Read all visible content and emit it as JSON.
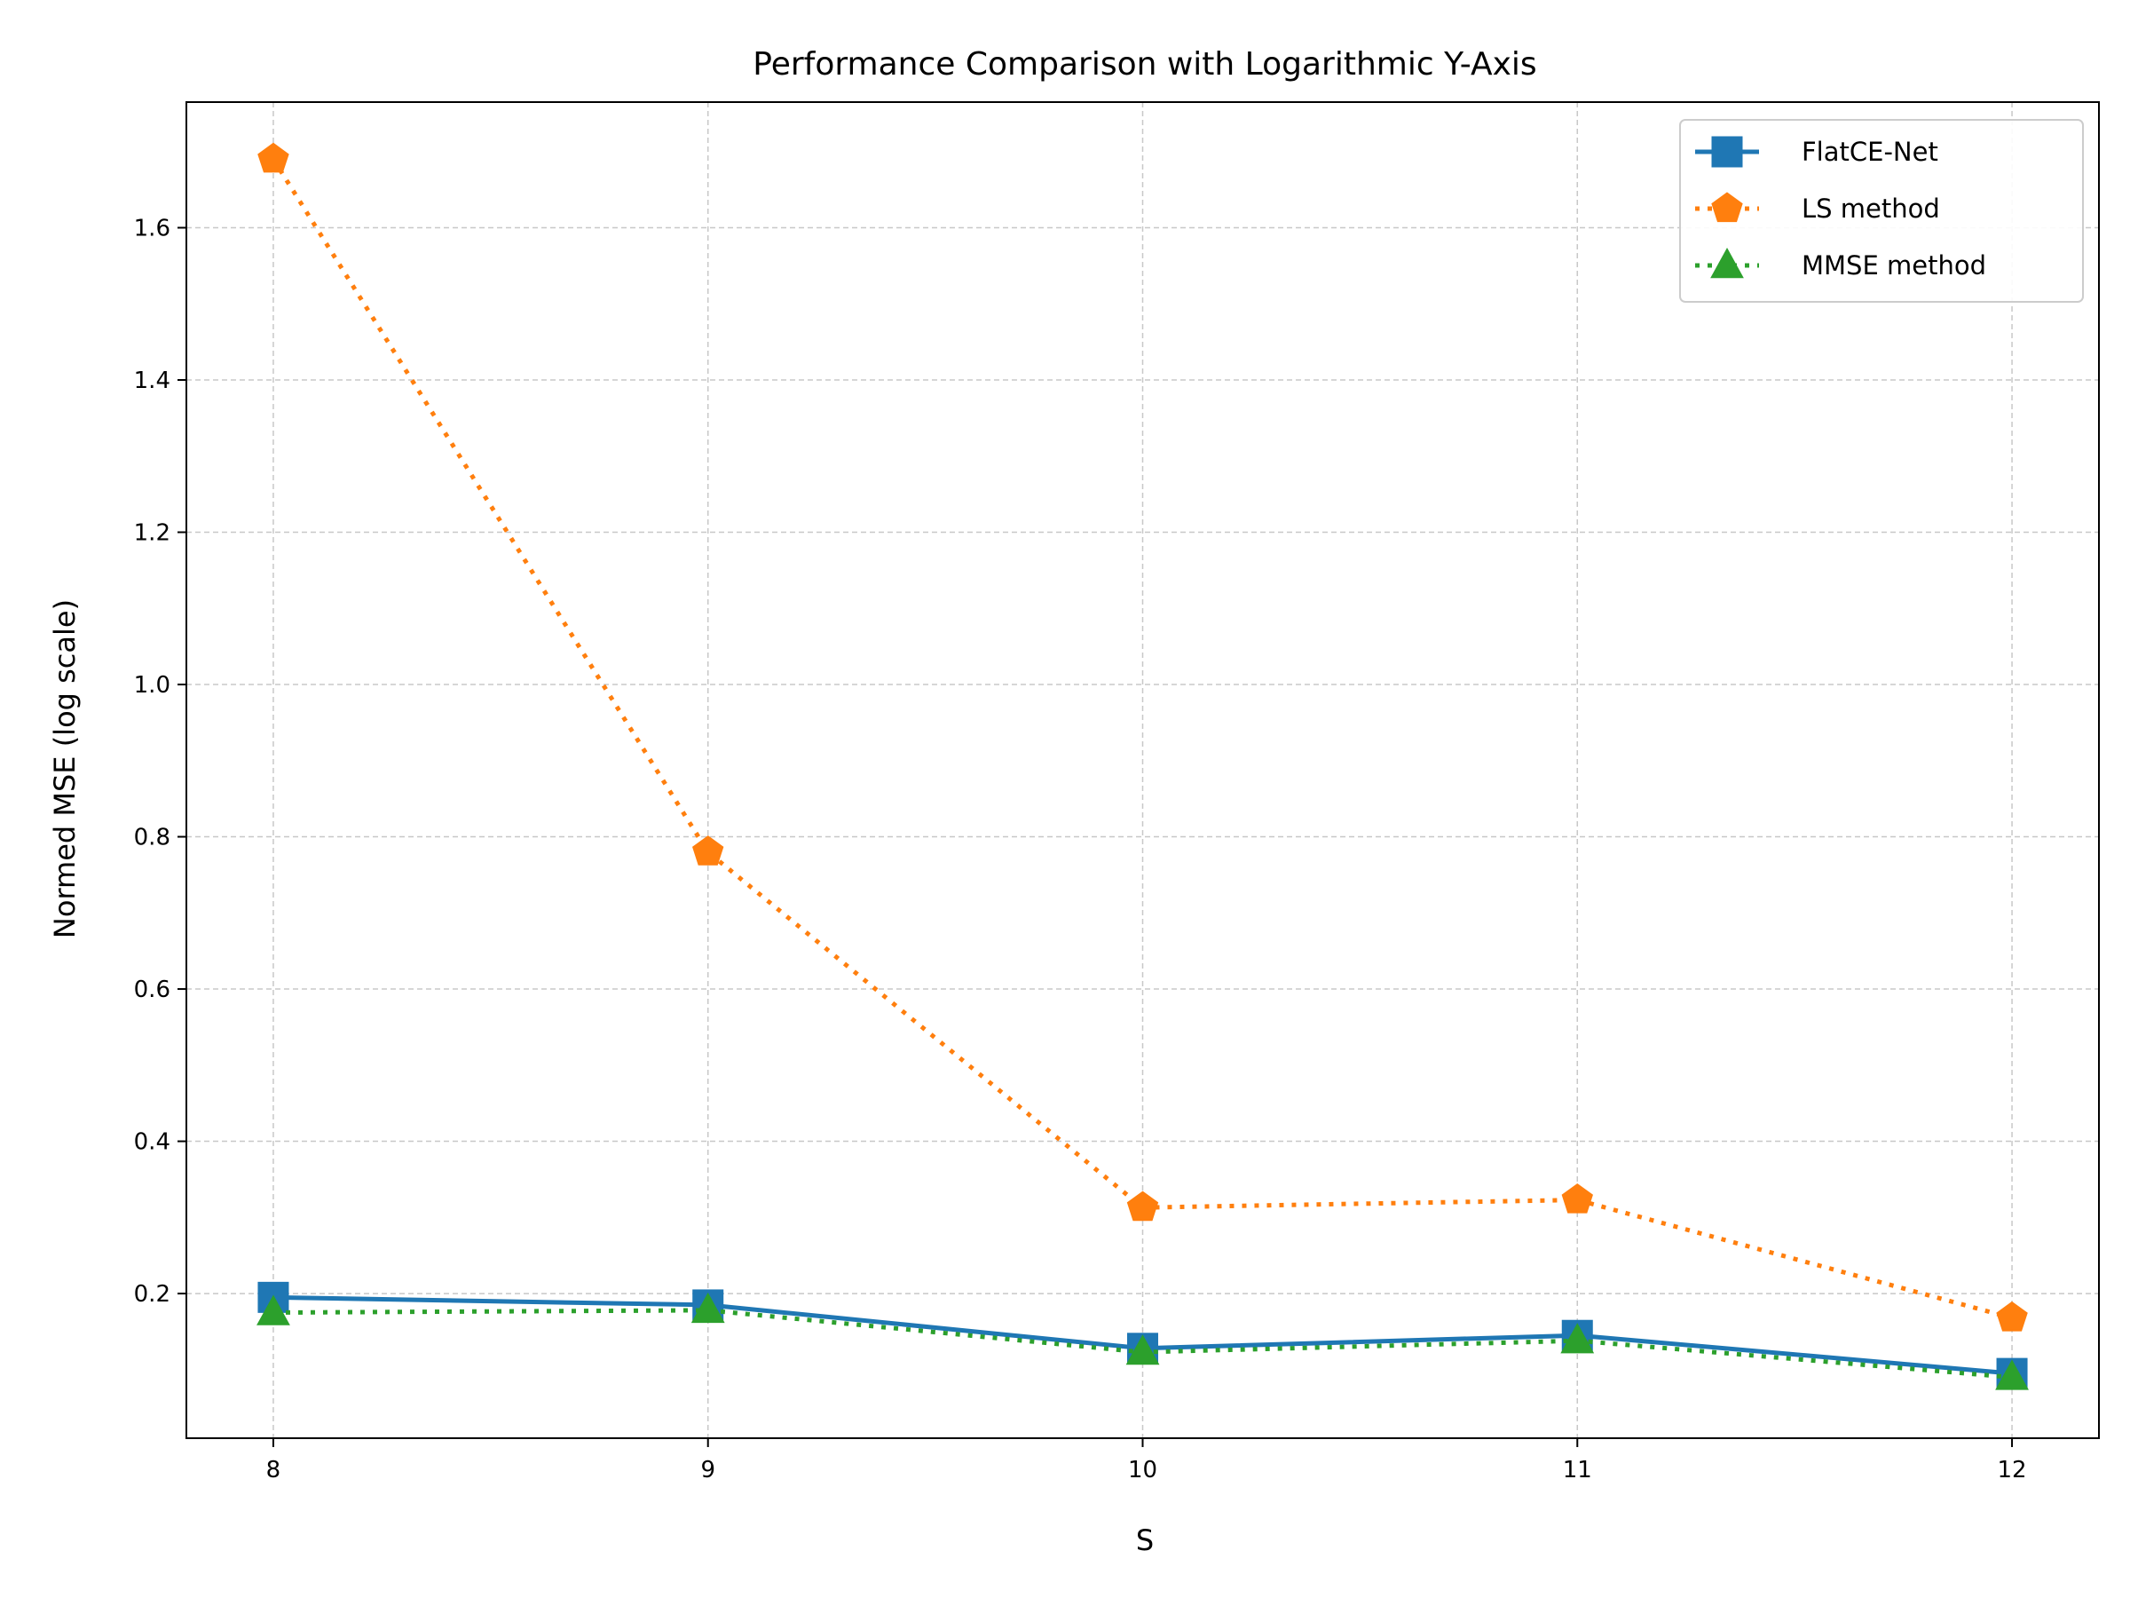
{
  "chart_data": {
    "type": "line",
    "title": "Performance Comparison with Logarithmic Y-Axis",
    "xlabel": "S",
    "ylabel": "Normed MSE (log scale)",
    "x": [
      8,
      9,
      10,
      11,
      12
    ],
    "xticks": [
      "8",
      "9",
      "10",
      "11",
      "12"
    ],
    "yticks": [
      "0.2",
      "0.4",
      "0.6",
      "0.8",
      "1.0",
      "1.2",
      "1.4",
      "1.6"
    ],
    "ytick_values": [
      0.2,
      0.4,
      0.6,
      0.8,
      1.0,
      1.2,
      1.4,
      1.6
    ],
    "xlim": [
      7.8,
      12.2
    ],
    "ylim": [
      0.01,
      1.765
    ],
    "grid": true,
    "legend_position": "top-right",
    "series": [
      {
        "name": "FlatCE-Net",
        "values": [
          0.195,
          0.185,
          0.128,
          0.145,
          0.095
        ],
        "color": "#1f77b4",
        "marker": "square",
        "linestyle": "solid"
      },
      {
        "name": "LS method",
        "values": [
          1.69,
          0.78,
          0.313,
          0.323,
          0.168
        ],
        "color": "#ff7f0e",
        "marker": "pentagon",
        "linestyle": "dotted"
      },
      {
        "name": "MMSE method",
        "values": [
          0.175,
          0.178,
          0.123,
          0.138,
          0.09
        ],
        "color": "#2ca02c",
        "marker": "triangle",
        "linestyle": "dotted"
      }
    ]
  }
}
